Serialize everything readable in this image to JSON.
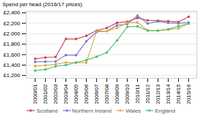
{
  "chart_data": {
    "type": "line",
    "categories": [
      "2000/01",
      "2001/02",
      "2002/03",
      "2003/04",
      "2004/05",
      "2005/06",
      "2006/07",
      "2007/08",
      "2008/09",
      "2009/10",
      "2010/11",
      "2011/12",
      "2012/13",
      "2013/14",
      "2014/15",
      "2015/16"
    ],
    "series": [
      {
        "name": "Scotland",
        "color": "#cc4444",
        "values": [
          1520,
          1545,
          1555,
          1900,
          1900,
          1960,
          2060,
          2110,
          2210,
          2230,
          2300,
          2255,
          2250,
          2240,
          2225,
          2325
        ]
      },
      {
        "name": "Northern Ireland",
        "color": "#7777cc",
        "values": [
          1460,
          1465,
          1470,
          1590,
          1590,
          1855,
          2035,
          2050,
          2160,
          2185,
          2345,
          2195,
          2235,
          2210,
          2200,
          2215
        ]
      },
      {
        "name": "Wales",
        "color": "#ddaa44",
        "values": [
          1380,
          1395,
          1415,
          1450,
          1445,
          1445,
          2050,
          2050,
          2110,
          2210,
          2215,
          2065,
          2060,
          2080,
          2100,
          2195
        ]
      },
      {
        "name": "England",
        "color": "#55bb77",
        "values": [
          1295,
          1315,
          1375,
          1400,
          1450,
          1495,
          1560,
          1640,
          1870,
          2130,
          2140,
          2060,
          2060,
          2085,
          2145,
          2195
        ]
      }
    ],
    "ylabel": "Spend per head (2016/17 prices)",
    "ylim": [
      1150,
      2430
    ],
    "yticks": [
      {
        "value": 1200,
        "label": "£1,200"
      },
      {
        "value": 1400,
        "label": "£1,400"
      },
      {
        "value": 1600,
        "label": "£1,600"
      },
      {
        "value": 1800,
        "label": "£1,800"
      },
      {
        "value": 2000,
        "label": "£2,000"
      },
      {
        "value": 2200,
        "label": "£2,200"
      },
      {
        "value": 2400,
        "label": "£2,400"
      }
    ],
    "grid": true,
    "legend": "bottom",
    "marker": "square"
  }
}
